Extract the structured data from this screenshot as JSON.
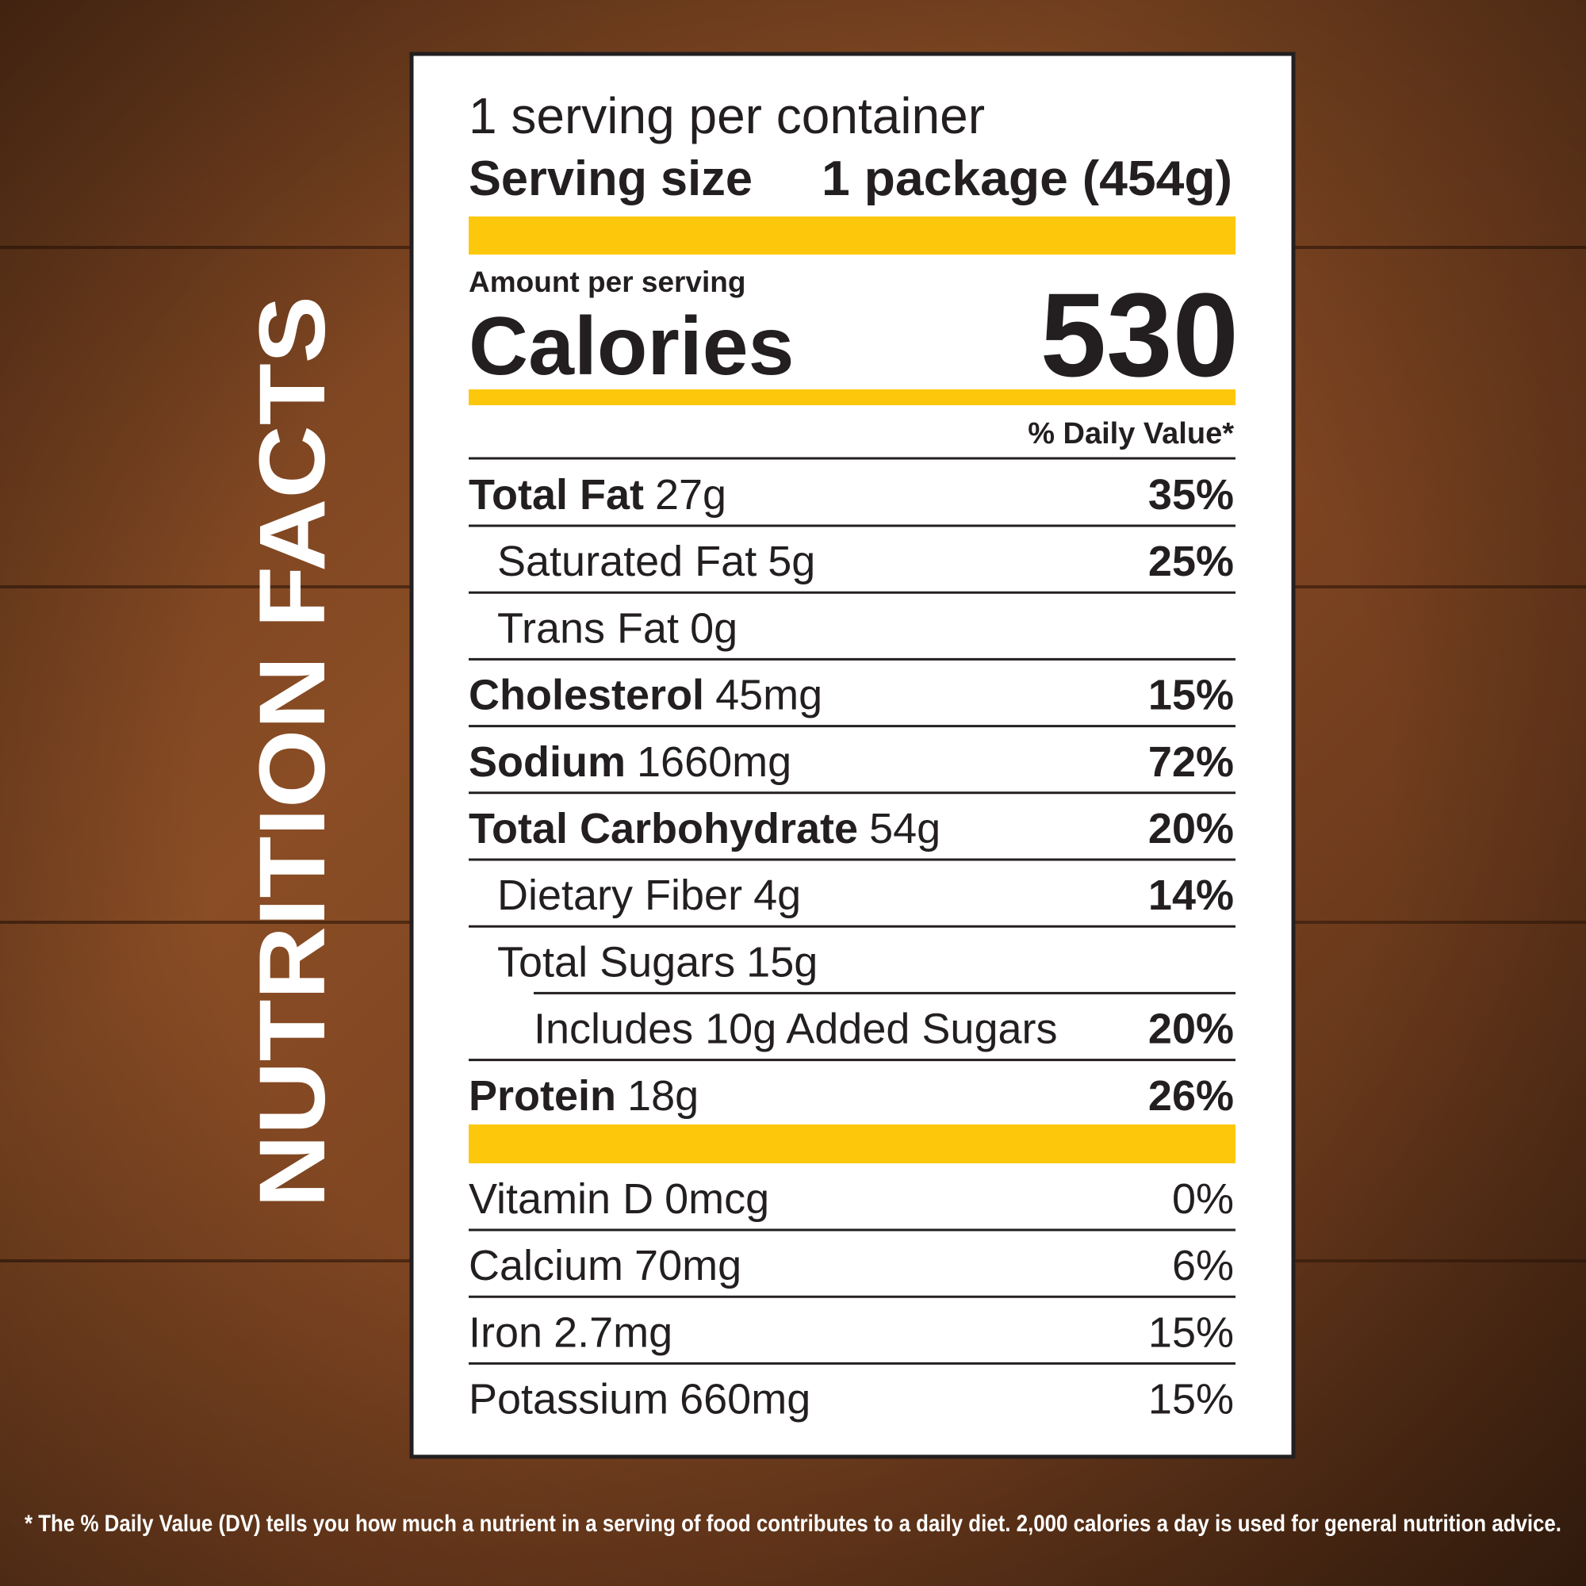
{
  "side_title": "NUTRITION FACTS",
  "servings": "1 serving per container",
  "serving_size": {
    "label": "Serving size",
    "value": "1 package (454g)"
  },
  "amount_per_serving": "Amount per serving",
  "calories": {
    "label": "Calories",
    "value": "530"
  },
  "daily_value_header": "% Daily Value*",
  "nutrients": [
    {
      "name": "Total Fat",
      "amount": "27g",
      "dv": "35%"
    },
    {
      "name": "Saturated Fat",
      "amount": "5g",
      "dv": "25%"
    },
    {
      "name": "Trans Fat",
      "amount": "0g"
    },
    {
      "name": "Cholesterol",
      "amount": "45mg",
      "dv": "15%"
    },
    {
      "name": "Sodium",
      "amount": "1660mg",
      "dv": "72%"
    },
    {
      "name": "Total Carbohydrate",
      "amount": "54g",
      "dv": "20%"
    },
    {
      "name": "Dietary Fiber",
      "amount": "4g",
      "dv": "14%"
    },
    {
      "name": "Total Sugars",
      "amount": "15g"
    },
    {
      "name": "Includes 10g Added Sugars",
      "dv": "20%"
    },
    {
      "name": "Protein",
      "amount": "18g",
      "dv": "26%"
    }
  ],
  "vitamins": [
    {
      "name": "Vitamin D",
      "amount": "0mcg",
      "dv": "0%"
    },
    {
      "name": "Calcium",
      "amount": "70mg",
      "dv": "6%"
    },
    {
      "name": "Iron",
      "amount": "2.7mg",
      "dv": "15%"
    },
    {
      "name": "Potassium",
      "amount": "660mg",
      "dv": "15%"
    }
  ],
  "footnote": "* The % Daily Value (DV) tells you how much a nutrient in a serving of food contributes to a daily diet. 2,000 calories a day is used for general nutrition advice."
}
